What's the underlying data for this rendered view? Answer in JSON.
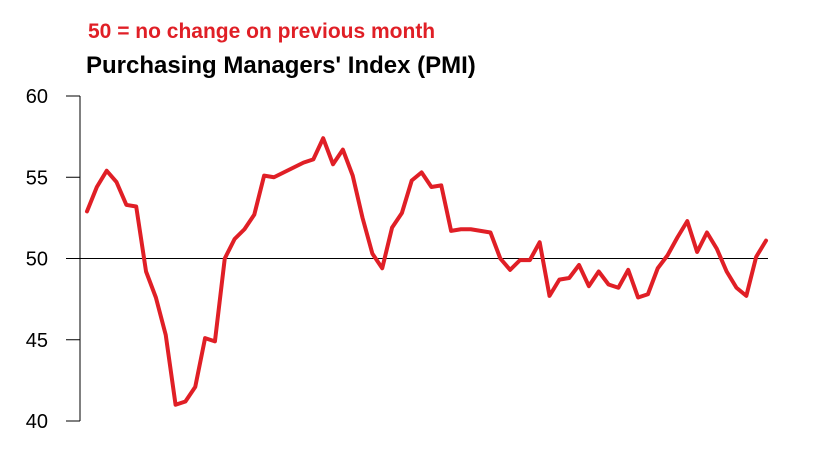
{
  "chart_data": {
    "type": "line",
    "title": "Purchasing Managers' Index (PMI)",
    "subtitle": "50 =  no change on previous month",
    "xlabel": "",
    "ylabel": "",
    "ylim": [
      40,
      60
    ],
    "yticks": [
      "60",
      "55",
      "50",
      "45",
      "40"
    ],
    "reference_line": 50,
    "grid": false,
    "series": [
      {
        "color": "#e01f26",
        "values": [
          52.9,
          54.4,
          55.4,
          54.7,
          53.3,
          53.2,
          49.2,
          47.6,
          45.3,
          41.0,
          41.2,
          42.1,
          45.1,
          44.9,
          50.0,
          51.2,
          51.8,
          52.7,
          55.1,
          55.0,
          55.3,
          55.6,
          55.9,
          56.1,
          57.4,
          55.8,
          56.7,
          55.1,
          52.5,
          50.3,
          49.4,
          51.9,
          52.8,
          54.8,
          55.3,
          54.4,
          54.5,
          51.7,
          51.8,
          51.8,
          51.7,
          51.6,
          50.0,
          49.3,
          49.9,
          49.9,
          51.0,
          47.7,
          48.7,
          48.8,
          49.6,
          48.3,
          49.2,
          48.4,
          48.2,
          49.3,
          47.6,
          47.8,
          49.4,
          50.2,
          51.3,
          52.3,
          50.4,
          51.6,
          50.6,
          49.2,
          48.2,
          47.7,
          50.1,
          51.1
        ]
      }
    ]
  }
}
